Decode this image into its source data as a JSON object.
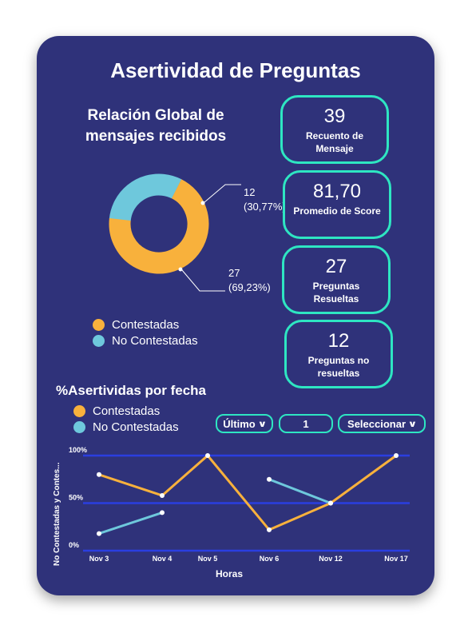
{
  "header": {
    "title": "Asertividad de Preguntas"
  },
  "donut": {
    "title": "Relación Global de mensajes recibidos",
    "slices": [
      {
        "name": "Contestadas",
        "value": 27,
        "label_count": "27",
        "label_pct": "(69,23%)",
        "color": "#f8b13c"
      },
      {
        "name": "No Contestadas",
        "value": 12,
        "label_count": "12",
        "label_pct": "(30,77%)",
        "color": "#6ec8dc"
      }
    ]
  },
  "legend_top": [
    {
      "label": "Contestadas",
      "color": "#f8b13c"
    },
    {
      "label": "No Contestadas",
      "color": "#6ec8dc"
    }
  ],
  "stats": [
    {
      "value": "39",
      "label": "Recuento de Mensaje"
    },
    {
      "value": "81,70",
      "label": "Promedio de Score"
    },
    {
      "value": "27",
      "label": "Preguntas Resueltas"
    },
    {
      "value": "12",
      "label": "Preguntas no resueltas"
    }
  ],
  "line_section": {
    "title": "%Asertividas por fecha",
    "legend": [
      {
        "label": "Contestadas",
        "color": "#f8b13c"
      },
      {
        "label": "No Contestadas",
        "color": "#6ec8dc"
      }
    ],
    "controls": {
      "period": "Último",
      "count": "1",
      "select": "Seleccionar"
    }
  },
  "chart_data": {
    "type": "line",
    "categories": [
      "Nov 3",
      "Nov 4",
      "Nov 5",
      "Nov 6",
      "Nov 12",
      "Nov 17"
    ],
    "series": [
      {
        "name": "Contestadas",
        "color": "#f8b13c",
        "values": [
          80,
          58,
          100,
          22,
          50,
          100
        ]
      },
      {
        "name": "No Contestadas",
        "color": "#6ec8dc",
        "values": [
          18,
          40,
          null,
          75,
          50,
          null
        ]
      }
    ],
    "ylim": [
      0,
      100
    ],
    "yticks": [
      "0%",
      "50%",
      "100%"
    ],
    "xlabel": "Horas",
    "ylabel": "No Contestadas y Contes...",
    "grid": true
  }
}
